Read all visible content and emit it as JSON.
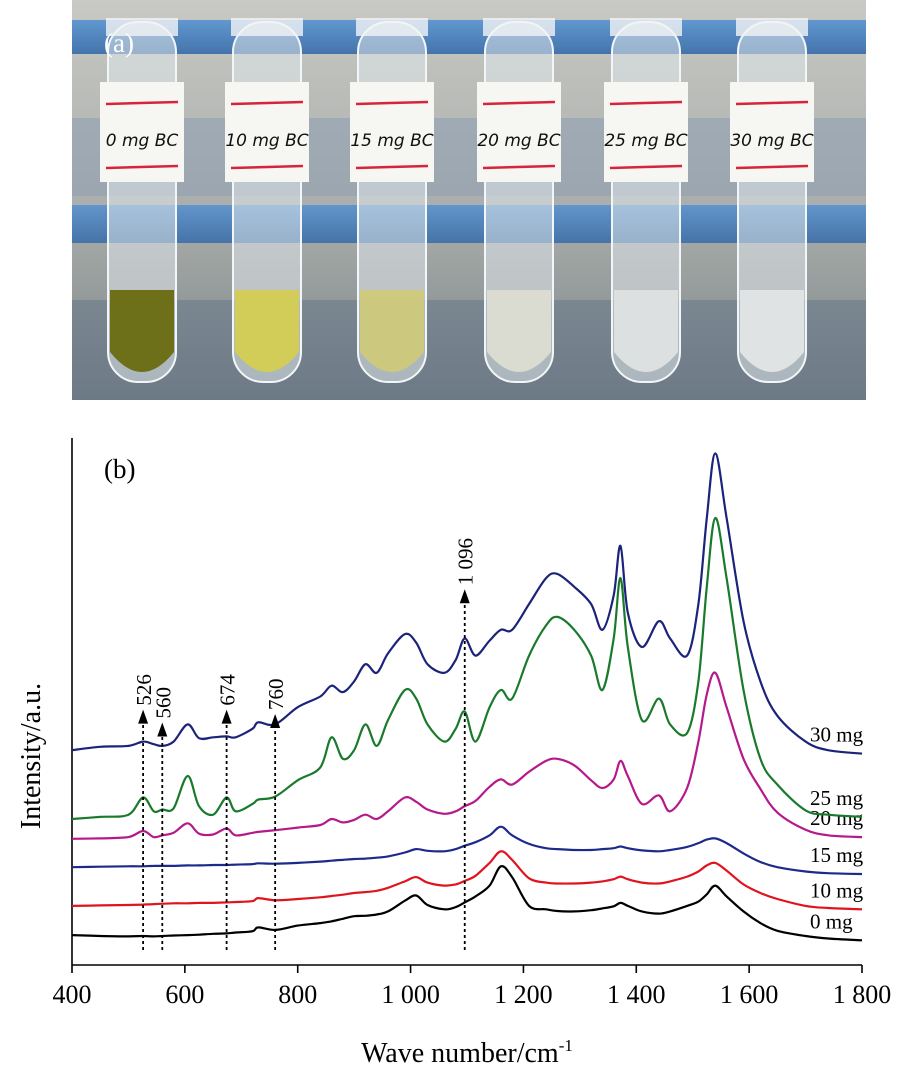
{
  "photo": {
    "panel_label": "(a)",
    "tube_labels": [
      "0 mg BC",
      "10 mg BC",
      "15 mg BC",
      "20 mg BC",
      "25 mg BC",
      "30 mg BC"
    ],
    "tube_colors": [
      "#6a6a10",
      "#d4cc52",
      "#cdc97a",
      "#dcdcd2",
      "#dfe2e2",
      "#e2e5e5"
    ]
  },
  "chart_data": {
    "type": "line",
    "panel_label": "(b)",
    "xlabel": "Wave number/cm",
    "xlabel_sup": "-1",
    "ylabel": "Intensity/a.u.",
    "xlim": [
      400,
      1800
    ],
    "xticks": [
      400,
      600,
      800,
      1000,
      1200,
      1400,
      1600,
      1800
    ],
    "xtick_labels": [
      "400",
      "600",
      "800",
      "1 000",
      "1 200",
      "1 400",
      "1 600",
      "1 800"
    ],
    "ylim": [
      0,
      1
    ],
    "x": [
      400,
      450,
      500,
      526,
      545,
      560,
      580,
      605,
      625,
      650,
      674,
      690,
      720,
      730,
      760,
      800,
      840,
      860,
      880,
      900,
      920,
      940,
      960,
      990,
      1010,
      1030,
      1060,
      1080,
      1096,
      1115,
      1140,
      1160,
      1180,
      1210,
      1240,
      1260,
      1290,
      1320,
      1340,
      1360,
      1372,
      1385,
      1410,
      1440,
      1460,
      1490,
      1510,
      1525,
      1540,
      1560,
      1590,
      1620,
      1650,
      1700,
      1740,
      1800
    ],
    "series": [
      {
        "name": "0 mg",
        "color": "#000000",
        "values": [
          0.03,
          0.028,
          0.027,
          0.028,
          0.027,
          0.028,
          0.029,
          0.03,
          0.031,
          0.033,
          0.034,
          0.036,
          0.039,
          0.048,
          0.042,
          0.052,
          0.058,
          0.062,
          0.068,
          0.074,
          0.075,
          0.078,
          0.085,
          0.11,
          0.122,
          0.1,
          0.09,
          0.095,
          0.106,
          0.12,
          0.145,
          0.19,
          0.165,
          0.098,
          0.09,
          0.086,
          0.085,
          0.088,
          0.092,
          0.097,
          0.105,
          0.098,
          0.085,
          0.08,
          0.085,
          0.098,
          0.108,
          0.125,
          0.145,
          0.12,
          0.085,
          0.058,
          0.04,
          0.028,
          0.022,
          0.018
        ]
      },
      {
        "name": "10 mg",
        "color": "#e0141e",
        "values": [
          0.098,
          0.099,
          0.1,
          0.101,
          0.102,
          0.103,
          0.104,
          0.104,
          0.105,
          0.105,
          0.106,
          0.107,
          0.109,
          0.116,
          0.111,
          0.114,
          0.118,
          0.121,
          0.124,
          0.128,
          0.13,
          0.133,
          0.14,
          0.155,
          0.165,
          0.152,
          0.145,
          0.148,
          0.156,
          0.168,
          0.198,
          0.225,
          0.205,
          0.162,
          0.152,
          0.15,
          0.15,
          0.152,
          0.155,
          0.16,
          0.166,
          0.16,
          0.152,
          0.15,
          0.155,
          0.166,
          0.178,
          0.192,
          0.198,
          0.18,
          0.148,
          0.128,
          0.114,
          0.098,
          0.093,
          0.09
        ]
      },
      {
        "name": "15 mg",
        "color": "#1c2a8c",
        "values": [
          0.188,
          0.189,
          0.19,
          0.19,
          0.191,
          0.191,
          0.191,
          0.192,
          0.192,
          0.193,
          0.193,
          0.194,
          0.195,
          0.197,
          0.196,
          0.198,
          0.201,
          0.203,
          0.205,
          0.207,
          0.208,
          0.21,
          0.213,
          0.222,
          0.23,
          0.226,
          0.225,
          0.23,
          0.238,
          0.246,
          0.262,
          0.282,
          0.262,
          0.242,
          0.232,
          0.23,
          0.228,
          0.228,
          0.23,
          0.232,
          0.236,
          0.232,
          0.227,
          0.225,
          0.228,
          0.235,
          0.244,
          0.252,
          0.255,
          0.244,
          0.22,
          0.2,
          0.188,
          0.178,
          0.174,
          0.172
        ]
      },
      {
        "name": "20 mg",
        "color": "#b5198a",
        "values": [
          0.254,
          0.255,
          0.258,
          0.272,
          0.258,
          0.262,
          0.268,
          0.29,
          0.266,
          0.264,
          0.278,
          0.262,
          0.268,
          0.27,
          0.274,
          0.28,
          0.286,
          0.3,
          0.292,
          0.298,
          0.31,
          0.3,
          0.318,
          0.35,
          0.34,
          0.322,
          0.312,
          0.318,
          0.33,
          0.342,
          0.375,
          0.392,
          0.38,
          0.41,
          0.435,
          0.44,
          0.425,
          0.39,
          0.372,
          0.392,
          0.435,
          0.4,
          0.335,
          0.355,
          0.318,
          0.372,
          0.48,
          0.59,
          0.64,
          0.56,
          0.44,
          0.37,
          0.315,
          0.275,
          0.262,
          0.258
        ]
      },
      {
        "name": "25 mg",
        "color": "#1a7a2c",
        "values": [
          0.3,
          0.305,
          0.31,
          0.35,
          0.318,
          0.322,
          0.325,
          0.4,
          0.33,
          0.31,
          0.35,
          0.318,
          0.335,
          0.345,
          0.352,
          0.39,
          0.42,
          0.49,
          0.44,
          0.46,
          0.52,
          0.47,
          0.53,
          0.6,
          0.58,
          0.52,
          0.48,
          0.51,
          0.55,
          0.48,
          0.56,
          0.6,
          0.58,
          0.68,
          0.75,
          0.77,
          0.74,
          0.68,
          0.6,
          0.72,
          0.86,
          0.7,
          0.53,
          0.58,
          0.52,
          0.5,
          0.62,
          0.84,
          1.0,
          0.86,
          0.6,
          0.44,
          0.38,
          0.32,
          0.31,
          0.305
        ]
      },
      {
        "name": "30 mg",
        "color": "#1c237a",
        "values": [
          0.46,
          0.468,
          0.47,
          0.48,
          0.474,
          0.47,
          0.48,
          0.52,
          0.488,
          0.49,
          0.492,
          0.49,
          0.51,
          0.525,
          0.52,
          0.56,
          0.585,
          0.61,
          0.595,
          0.62,
          0.66,
          0.64,
          0.685,
          0.73,
          0.71,
          0.66,
          0.64,
          0.67,
          0.72,
          0.68,
          0.715,
          0.74,
          0.74,
          0.8,
          0.86,
          0.87,
          0.84,
          0.8,
          0.74,
          0.82,
          0.935,
          0.78,
          0.7,
          0.76,
          0.72,
          0.68,
          0.8,
          1.0,
          1.15,
          1.0,
          0.76,
          0.62,
          0.54,
          0.48,
          0.46,
          0.452
        ]
      }
    ],
    "peaks": [
      {
        "x": 526,
        "label": "526",
        "tip": 0.545
      },
      {
        "x": 560,
        "label": "560",
        "tip": 0.515
      },
      {
        "x": 674,
        "label": "674",
        "tip": 0.545
      },
      {
        "x": 760,
        "label": "760",
        "tip": 0.535
      },
      {
        "x": 1096,
        "label": "1 096",
        "tip": 0.825
      }
    ]
  }
}
